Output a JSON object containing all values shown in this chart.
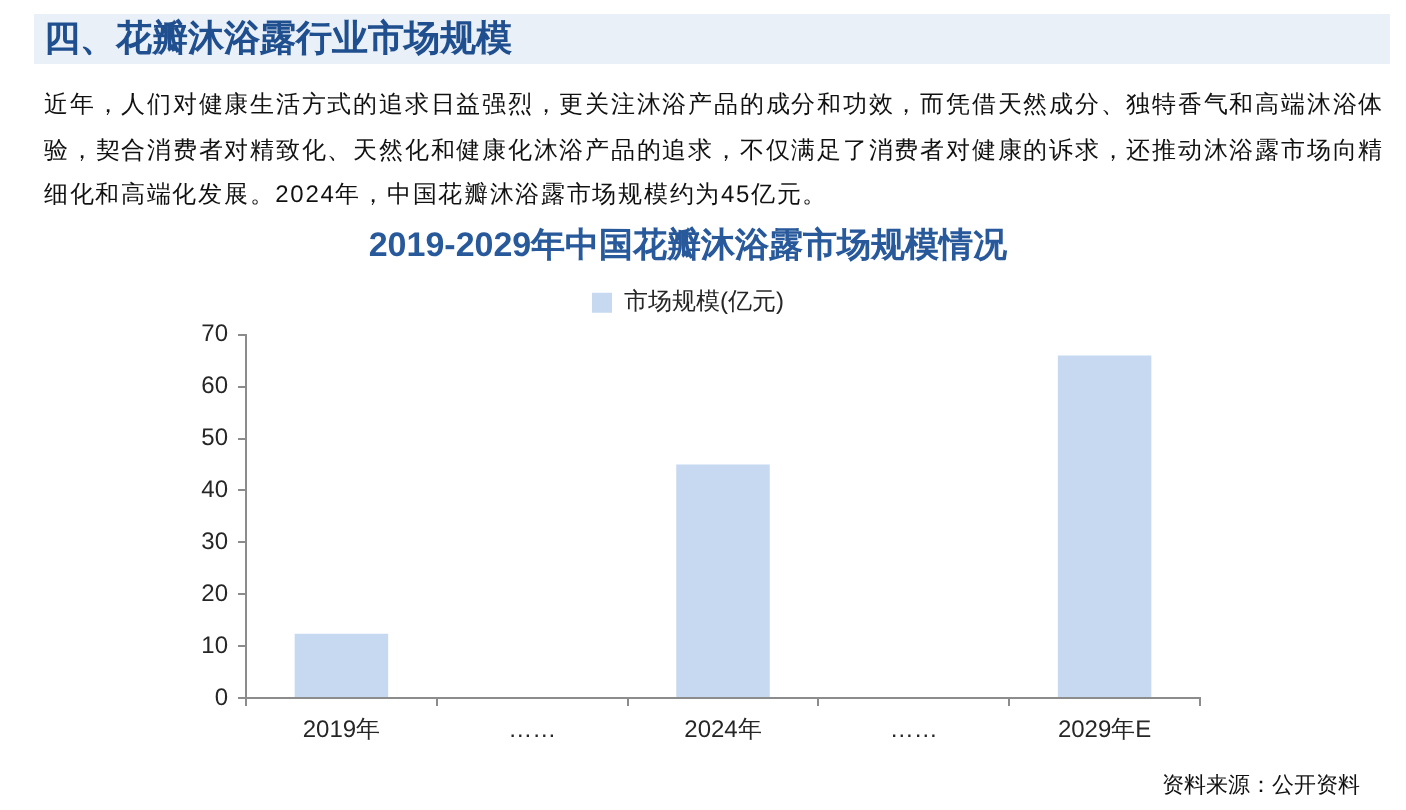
{
  "chart_data": {
    "type": "bar",
    "title": "2019-2029年中国花瓣沐浴露市场规模情况",
    "categories": [
      "2019年",
      "……",
      "2024年",
      "……",
      "2029年E"
    ],
    "series": [
      {
        "name": "市场规模(亿元)",
        "color": "#c6d9f1",
        "values": [
          12.4,
          null,
          45,
          null,
          66
        ]
      }
    ],
    "ylim": [
      0,
      70
    ],
    "yticks": [
      0,
      10,
      20,
      30,
      40,
      50,
      60,
      70
    ],
    "legend": "top",
    "annotations": [
      "四、花瓣沐浴露行业市场规模",
      "近年，人们对健康生活方式的追求日益强烈，更关注沐浴产品的成分和功效，而凭借天然成分、独特香气和高端沐浴体验，契合消费者对精致化、天然化和健康化沐浴产品的追求，不仅满足了消费者对健康的诉求，还推动沐浴露市场向精细化和高端化发展。2024年，中国花瓣沐浴露市场规模约为45亿元。",
      "资料来源：公开资料"
    ]
  }
}
